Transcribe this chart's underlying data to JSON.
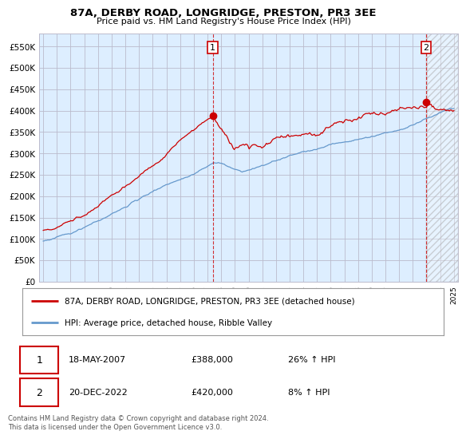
{
  "title": "87A, DERBY ROAD, LONGRIDGE, PRESTON, PR3 3EE",
  "subtitle": "Price paid vs. HM Land Registry's House Price Index (HPI)",
  "ylabel_ticks": [
    "£0",
    "£50K",
    "£100K",
    "£150K",
    "£200K",
    "£250K",
    "£300K",
    "£350K",
    "£400K",
    "£450K",
    "£500K",
    "£550K"
  ],
  "ytick_values": [
    0,
    50000,
    100000,
    150000,
    200000,
    250000,
    300000,
    350000,
    400000,
    450000,
    500000,
    550000
  ],
  "ylim": [
    0,
    580000
  ],
  "xlim_start": 1994.7,
  "xlim_end": 2025.3,
  "xtick_years": [
    1995,
    1996,
    1997,
    1998,
    1999,
    2000,
    2001,
    2002,
    2003,
    2004,
    2005,
    2006,
    2007,
    2008,
    2009,
    2010,
    2011,
    2012,
    2013,
    2014,
    2015,
    2016,
    2017,
    2018,
    2019,
    2020,
    2021,
    2022,
    2023,
    2024,
    2025
  ],
  "red_line_color": "#cc0000",
  "blue_line_color": "#6699cc",
  "chart_bg_color": "#ddeeff",
  "marker1_date": 2007.38,
  "marker1_value": 388000,
  "marker2_date": 2022.97,
  "marker2_value": 420000,
  "legend_label1": "87A, DERBY ROAD, LONGRIDGE, PRESTON, PR3 3EE (detached house)",
  "legend_label2": "HPI: Average price, detached house, Ribble Valley",
  "note1_label": "1",
  "note1_date": "18-MAY-2007",
  "note1_price": "£388,000",
  "note1_hpi": "26% ↑ HPI",
  "note2_label": "2",
  "note2_date": "20-DEC-2022",
  "note2_price": "£420,000",
  "note2_hpi": "8% ↑ HPI",
  "footer": "Contains HM Land Registry data © Crown copyright and database right 2024.\nThis data is licensed under the Open Government Licence v3.0.",
  "background_color": "#ffffff",
  "grid_color": "#bbbbcc"
}
